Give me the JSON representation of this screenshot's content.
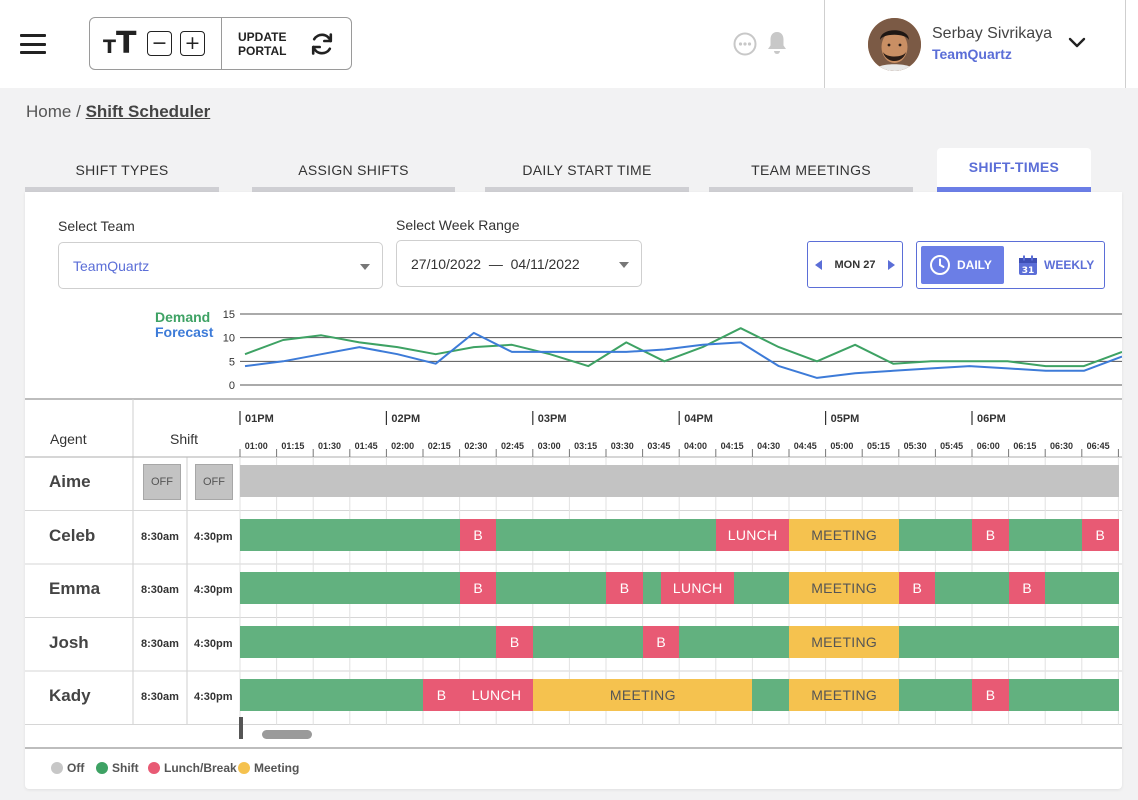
{
  "toolbar": {
    "font_glyph_small": "T",
    "font_glyph_large": "T",
    "decrease": "−",
    "increase": "+",
    "update_line1": "UPDATE",
    "update_line2": "PORTAL"
  },
  "user": {
    "name": "Serbay Sivrikaya",
    "team": "TeamQuartz"
  },
  "breadcrumb": {
    "home": "Home",
    "separator": "/",
    "current": "Shift Scheduler"
  },
  "tabs": [
    {
      "label": "SHIFT TYPES",
      "active": false
    },
    {
      "label": "ASSIGN SHIFTS",
      "active": false
    },
    {
      "label": "DAILY START TIME",
      "active": false
    },
    {
      "label": "TEAM MEETINGS",
      "active": false
    },
    {
      "label": "SHIFT-TIMES",
      "active": true
    }
  ],
  "filters": {
    "team_label": "Select Team",
    "team_value": "TeamQuartz",
    "week_label": "Select Week Range",
    "week_start": "27/10/2022",
    "week_dash": "—",
    "week_end": "04/11/2022"
  },
  "day_nav": {
    "label": "MON 27"
  },
  "view_toggle": {
    "daily": "DAILY",
    "weekly": "WEEKLY",
    "calendar_day": "31",
    "selected": "daily"
  },
  "chart_data": {
    "type": "line",
    "x": [
      "01:00",
      "01:15",
      "01:30",
      "01:45",
      "02:00",
      "02:15",
      "02:30",
      "02:45",
      "03:00",
      "03:15",
      "03:30",
      "03:45",
      "04:00",
      "04:15",
      "04:30",
      "04:45",
      "05:00",
      "05:15",
      "05:30",
      "05:45",
      "06:00",
      "06:15",
      "06:30",
      "06:45"
    ],
    "series": [
      {
        "name": "Demand",
        "color": "#3ea264",
        "values": [
          6.5,
          9.5,
          10.5,
          9,
          8,
          6.5,
          8,
          8.5,
          6.5,
          4,
          9,
          5,
          8,
          12,
          8,
          5,
          8.5,
          4.5,
          5,
          5,
          5,
          4,
          4,
          7
        ]
      },
      {
        "name": "Forecast",
        "color": "#3d7bd8",
        "values": [
          4,
          5,
          6.5,
          8,
          6.5,
          4.5,
          11,
          7,
          7,
          7,
          7,
          7.5,
          8.5,
          9,
          4,
          1.5,
          2.5,
          3,
          3.5,
          4,
          3.5,
          3,
          3,
          6
        ]
      }
    ],
    "yticks": [
      "15",
      "10",
      "5",
      "0"
    ],
    "ylim": [
      0,
      15
    ],
    "legend_title_1": "Demand",
    "legend_title_2": "Forecast"
  },
  "gantt": {
    "agent_header": "Agent",
    "shift_header": "Shift",
    "hour_labels": [
      "01PM",
      "02PM",
      "03PM",
      "04PM",
      "05PM",
      "06PM"
    ],
    "slot_labels": [
      "01:00",
      "01:15",
      "01:30",
      "01:45",
      "02:00",
      "02:15",
      "02:30",
      "02:45",
      "03:00",
      "03:15",
      "03:30",
      "03:45",
      "04:00",
      "04:15",
      "04:30",
      "04:45",
      "05:00",
      "05:15",
      "05:30",
      "05:45",
      "06:00",
      "06:15",
      "06:30",
      "06:45"
    ],
    "rows": [
      {
        "name": "Aime",
        "off": true,
        "start": "OFF",
        "end": "OFF",
        "segments": [
          {
            "type": "off",
            "from": 0,
            "to": 24,
            "label": ""
          }
        ]
      },
      {
        "name": "Celeb",
        "off": false,
        "start": "8:30am",
        "end": "4:30pm",
        "segments": [
          {
            "type": "shift",
            "from": 0,
            "to": 6,
            "label": ""
          },
          {
            "type": "break",
            "from": 6,
            "to": 7,
            "label": "B"
          },
          {
            "type": "shift",
            "from": 7,
            "to": 13,
            "label": ""
          },
          {
            "type": "lunch",
            "from": 13,
            "to": 15,
            "label": "LUNCH"
          },
          {
            "type": "meeting",
            "from": 15,
            "to": 18,
            "label": "MEETING"
          },
          {
            "type": "shift",
            "from": 18,
            "to": 20,
            "label": ""
          },
          {
            "type": "break",
            "from": 20,
            "to": 21,
            "label": "B"
          },
          {
            "type": "shift",
            "from": 21,
            "to": 23,
            "label": ""
          },
          {
            "type": "break",
            "from": 23,
            "to": 24,
            "label": "B"
          }
        ]
      },
      {
        "name": "Emma",
        "off": false,
        "start": "8:30am",
        "end": "4:30pm",
        "segments": [
          {
            "type": "shift",
            "from": 0,
            "to": 6,
            "label": ""
          },
          {
            "type": "break",
            "from": 6,
            "to": 7,
            "label": "B"
          },
          {
            "type": "shift",
            "from": 7,
            "to": 10,
            "label": ""
          },
          {
            "type": "break",
            "from": 10,
            "to": 11,
            "label": "B"
          },
          {
            "type": "shift",
            "from": 11,
            "to": 11.5,
            "label": ""
          },
          {
            "type": "lunch",
            "from": 11.5,
            "to": 13.5,
            "label": "LUNCH"
          },
          {
            "type": "shift",
            "from": 13.5,
            "to": 15,
            "label": ""
          },
          {
            "type": "meeting",
            "from": 15,
            "to": 18,
            "label": "MEETING"
          },
          {
            "type": "break",
            "from": 18,
            "to": 19,
            "label": "B"
          },
          {
            "type": "shift",
            "from": 19,
            "to": 21,
            "label": ""
          },
          {
            "type": "break",
            "from": 21,
            "to": 22,
            "label": "B"
          },
          {
            "type": "shift",
            "from": 22,
            "to": 24,
            "label": ""
          }
        ]
      },
      {
        "name": "Josh",
        "off": false,
        "start": "8:30am",
        "end": "4:30pm",
        "segments": [
          {
            "type": "shift",
            "from": 0,
            "to": 7,
            "label": ""
          },
          {
            "type": "break",
            "from": 7,
            "to": 8,
            "label": "B"
          },
          {
            "type": "shift",
            "from": 8,
            "to": 11,
            "label": ""
          },
          {
            "type": "break",
            "from": 11,
            "to": 12,
            "label": "B"
          },
          {
            "type": "shift",
            "from": 12,
            "to": 15,
            "label": ""
          },
          {
            "type": "meeting",
            "from": 15,
            "to": 18,
            "label": "MEETING"
          },
          {
            "type": "shift",
            "from": 18,
            "to": 24,
            "label": ""
          }
        ]
      },
      {
        "name": "Kady",
        "off": false,
        "start": "8:30am",
        "end": "4:30pm",
        "segments": [
          {
            "type": "shift",
            "from": 0,
            "to": 5,
            "label": ""
          },
          {
            "type": "break",
            "from": 5,
            "to": 6,
            "label": "B"
          },
          {
            "type": "lunch",
            "from": 6,
            "to": 8,
            "label": "LUNCH"
          },
          {
            "type": "meeting",
            "from": 8,
            "to": 14,
            "label": "MEETING"
          },
          {
            "type": "shift",
            "from": 14,
            "to": 15,
            "label": ""
          },
          {
            "type": "meeting",
            "from": 15,
            "to": 18,
            "label": "MEETING"
          },
          {
            "type": "shift",
            "from": 18,
            "to": 20,
            "label": ""
          },
          {
            "type": "break",
            "from": 20,
            "to": 21,
            "label": "B"
          },
          {
            "type": "shift",
            "from": 21,
            "to": 24,
            "label": ""
          }
        ]
      }
    ]
  },
  "legend": [
    {
      "label": "Off",
      "color": "#c7c7c7"
    },
    {
      "label": "Shift",
      "color": "#3ea264"
    },
    {
      "label": "Lunch/Break",
      "color": "#e85a74"
    },
    {
      "label": "Meeting",
      "color": "#f5c24f"
    }
  ],
  "icons": {
    "menu": "hamburger-icon",
    "refresh": "refresh-icon",
    "chat": "chat-icon",
    "bell": "bell-icon",
    "dropdown": "chevron-down-icon",
    "clock": "clock-icon",
    "calendar": "calendar-icon"
  },
  "colors": {
    "accent": "#5b6ed7",
    "shift": "#62b17f",
    "break": "#e85a74",
    "meeting": "#f5c24f",
    "off": "#c3c3c3"
  }
}
